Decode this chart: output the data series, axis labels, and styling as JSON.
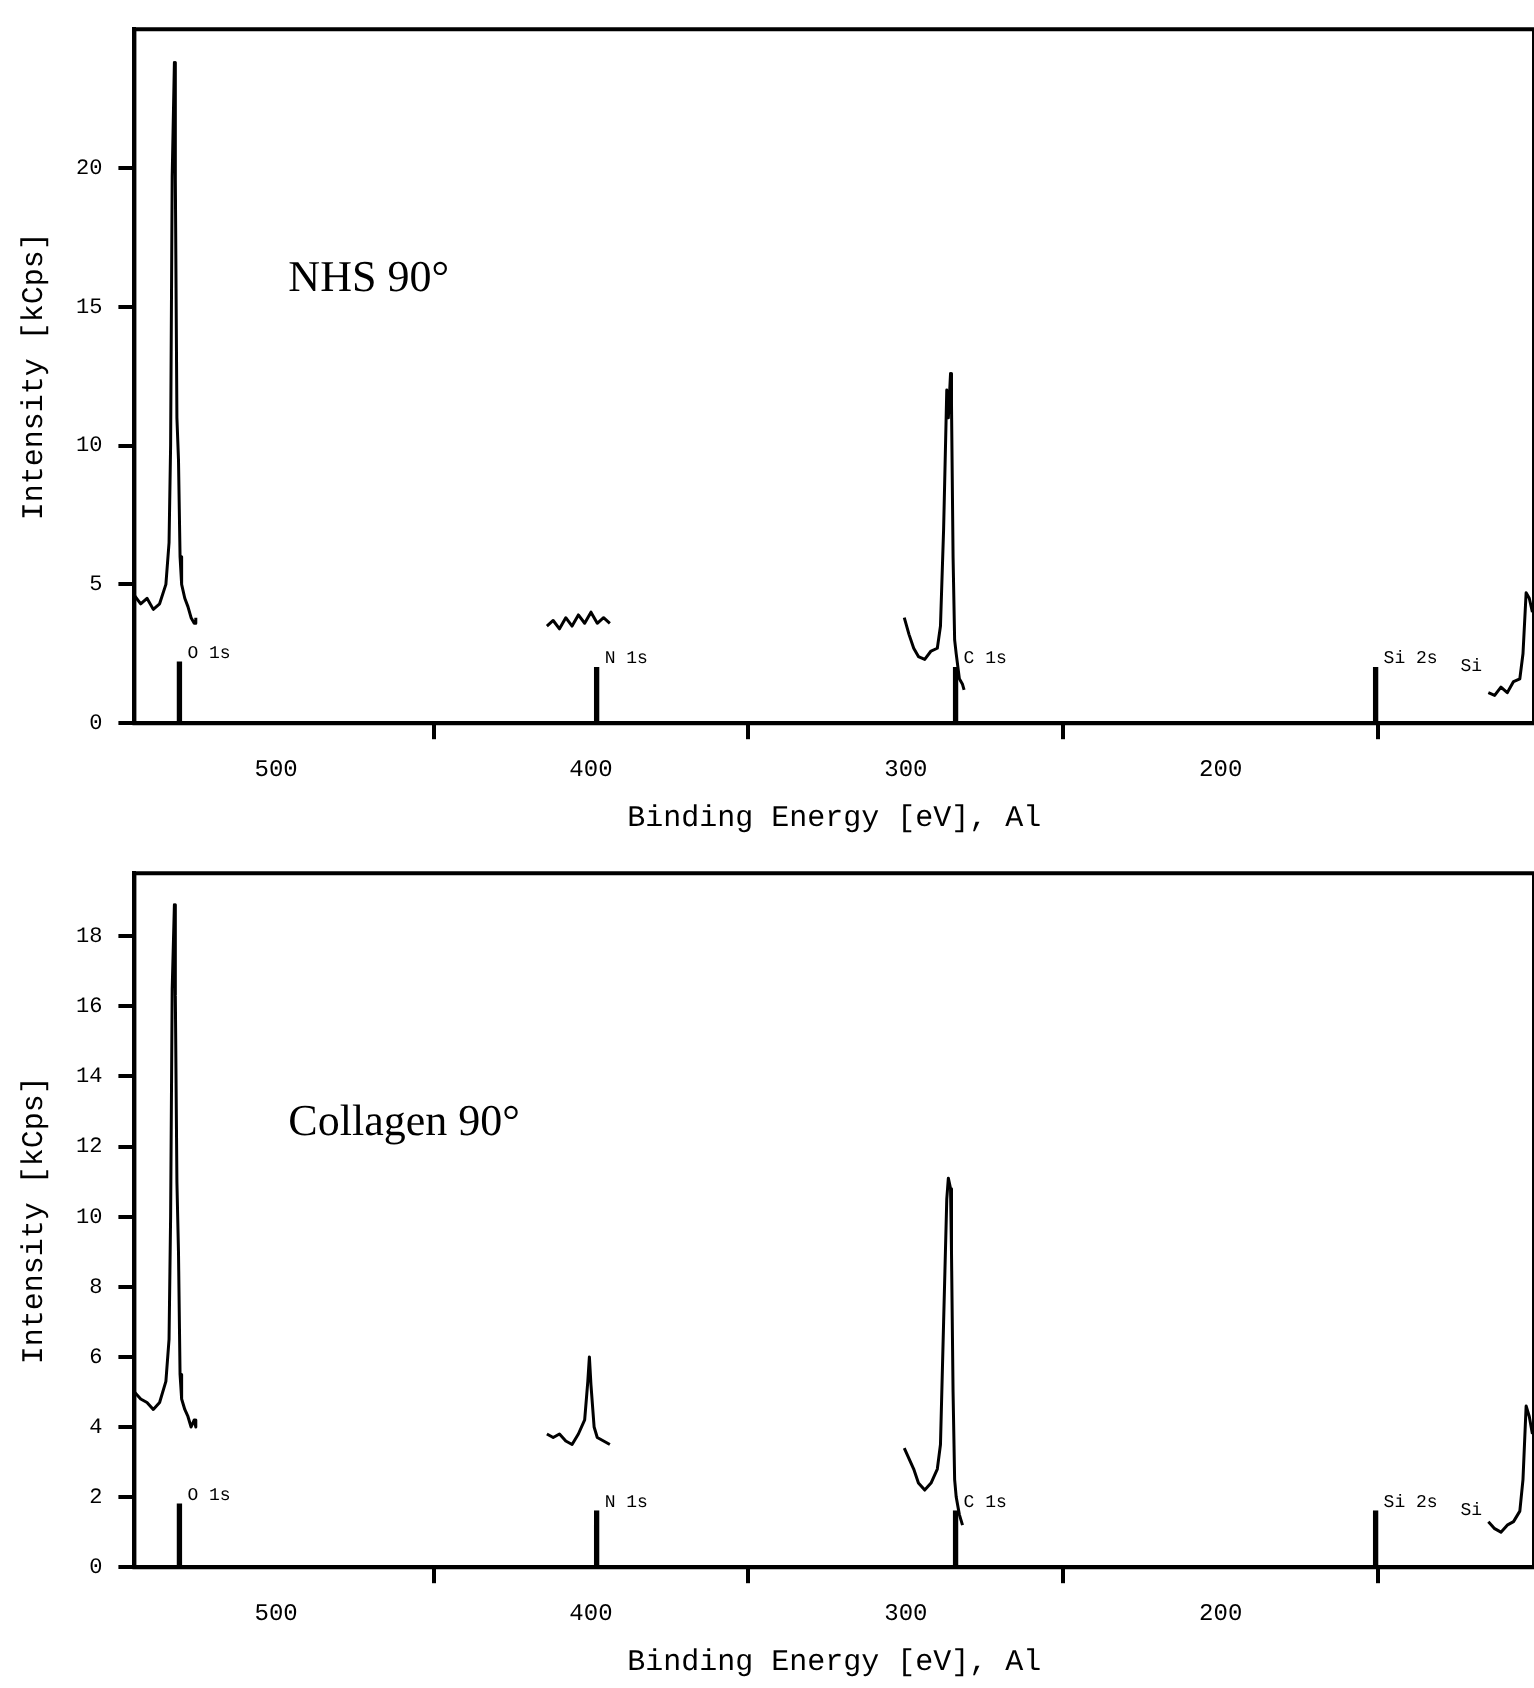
{
  "chart_data": [
    {
      "type": "line",
      "xlabel": "Binding Energy [eV], Al",
      "ylabel": "Intensity [kCps]",
      "xlim": [
        545,
        100.5
      ],
      "xticks": [
        500,
        400,
        300,
        200
      ],
      "ylim": [
        0,
        25
      ],
      "yticks": [
        0,
        5,
        10,
        15,
        20
      ],
      "grid": false,
      "legend": false,
      "marker": "none",
      "annotations": [
        "NHS 90°",
        {
          "text": "O 1s",
          "x": 530.7,
          "y": 2.2
        },
        {
          "text": "N 1s",
          "x": 398.2,
          "y": 2.0
        },
        {
          "text": "C 1s",
          "x": 284.2,
          "y": 2.0
        },
        {
          "text": "Si 2s",
          "x": 150.8,
          "y": 2.0
        },
        "Si"
      ],
      "series": [
        {
          "type": "bar",
          "color": "#000000",
          "x": [
            530.7,
            398.2,
            284.2,
            150.8
          ],
          "values": [
            2.2,
            2.0,
            2.0,
            2.0
          ]
        },
        {
          "color": "#000000",
          "x": [
            545,
            543,
            541,
            539,
            537,
            535,
            534,
            533.5,
            533,
            532.3,
            532,
            531.5,
            531,
            530.5,
            530,
            529,
            528,
            527,
            526,
            525.5,
            520,
            414,
            412,
            410,
            408,
            406,
            404,
            402,
            400,
            398,
            396,
            394,
            390,
            300.5,
            299,
            297.5,
            296,
            294,
            292,
            290,
            289,
            288,
            287,
            286.5,
            285.8,
            285.5,
            285,
            284.5,
            284,
            283,
            282,
            281.5,
            200,
            115,
            113,
            111,
            109,
            107,
            105,
            104,
            103,
            102,
            101
          ],
          "values": [
            4.6,
            4.3,
            4.5,
            4.1,
            4.3,
            5.0,
            6.5,
            10,
            19.7,
            23.8,
            19.6,
            11,
            9.5,
            6,
            5,
            4.5,
            4.2,
            3.8,
            3.6,
            3.8,
            null,
            3.5,
            3.7,
            3.4,
            3.8,
            3.5,
            3.9,
            3.6,
            4.0,
            3.6,
            3.8,
            3.6,
            null,
            3.8,
            3.2,
            2.7,
            2.4,
            2.3,
            2.6,
            2.7,
            3.5,
            7,
            12,
            11,
            12.6,
            11.5,
            6,
            3,
            2.5,
            1.6,
            1.4,
            1.2,
            null,
            1.1,
            1.0,
            1.3,
            1.1,
            1.5,
            1.6,
            2.5,
            4.7,
            4.5,
            4.0
          ]
        }
      ]
    },
    {
      "type": "line",
      "xlabel": "Binding Energy [eV], Al",
      "ylabel": "Intensity [kCps]",
      "xlim": [
        545,
        100.5
      ],
      "xticks": [
        500,
        400,
        300,
        200
      ],
      "ylim": [
        0,
        19.8
      ],
      "yticks": [
        0,
        2,
        4,
        6,
        8,
        10,
        12,
        14,
        16,
        18
      ],
      "grid": false,
      "legend": false,
      "marker": "none",
      "annotations": [
        "Collagen 90°",
        {
          "text": "O 1s",
          "x": 530.7,
          "y": 1.8
        },
        {
          "text": "N 1s",
          "x": 398.2,
          "y": 1.6
        },
        {
          "text": "C 1s",
          "x": 284.2,
          "y": 1.6
        },
        {
          "text": "Si 2s",
          "x": 150.8,
          "y": 1.6
        },
        "Si"
      ],
      "series": [
        {
          "type": "bar",
          "color": "#000000",
          "x": [
            530.7,
            398.2,
            284.2,
            150.8
          ],
          "values": [
            1.8,
            1.6,
            1.6,
            1.6
          ]
        },
        {
          "color": "#000000",
          "x": [
            545,
            543,
            541,
            539,
            537,
            535,
            534,
            533.5,
            533,
            532.3,
            532,
            531.5,
            531,
            530.5,
            530,
            529,
            528,
            527,
            526,
            525.5,
            520,
            414,
            412,
            410,
            408,
            406,
            404,
            402,
            401,
            400.5,
            400,
            399,
            398,
            396,
            394,
            390,
            300.5,
            299,
            297.5,
            296,
            294,
            292,
            290,
            289,
            288,
            287,
            286.5,
            285.8,
            285.5,
            285,
            284.5,
            284,
            283,
            282,
            200,
            115,
            113,
            111,
            109,
            107,
            105,
            104,
            103,
            102,
            101
          ],
          "values": [
            5.0,
            4.8,
            4.7,
            4.5,
            4.7,
            5.3,
            6.5,
            10,
            16.5,
            18.9,
            16.3,
            11,
            9,
            5.5,
            4.8,
            4.5,
            4.3,
            4.0,
            4.2,
            4.0,
            null,
            3.8,
            3.7,
            3.8,
            3.6,
            3.5,
            3.8,
            4.2,
            5.3,
            6.0,
            5.2,
            4.0,
            3.7,
            3.6,
            3.5,
            null,
            3.4,
            3.1,
            2.8,
            2.4,
            2.2,
            2.4,
            2.8,
            3.5,
            7,
            10.5,
            11.1,
            10.8,
            9,
            5,
            2.5,
            2.0,
            1.5,
            1.2,
            null,
            1.3,
            1.1,
            1.0,
            1.2,
            1.3,
            1.6,
            2.5,
            4.6,
            4.3,
            3.8
          ]
        }
      ]
    }
  ]
}
